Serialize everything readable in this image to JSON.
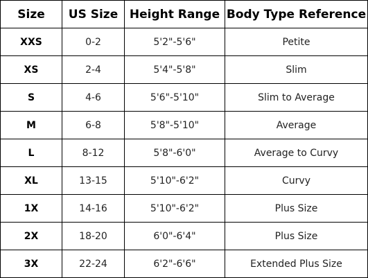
{
  "table": {
    "header": [
      "Size",
      "US Size",
      "Height Range",
      "Body Type Reference"
    ],
    "rows": [
      [
        "XXS",
        "0-2",
        "5'2\"-5'6\"",
        "Petite"
      ],
      [
        "XS",
        "2-4",
        "5'4\"-5'8\"",
        "Slim"
      ],
      [
        "S",
        "4-6",
        "5'6\"-5'10\"",
        "Slim to Average"
      ],
      [
        "M",
        "6-8",
        "5'8\"-5'10\"",
        "Average"
      ],
      [
        "L",
        "8-12",
        "5'8\"-6'0\"",
        "Average to Curvy"
      ],
      [
        "XL",
        "13-15",
        "5'10\"-6'2\"",
        "Curvy"
      ],
      [
        "1X",
        "14-16",
        "5'10\"-6'2\"",
        "Plus Size"
      ],
      [
        "2X",
        "18-20",
        "6'0\"-6'4\"",
        "Plus Size"
      ],
      [
        "3X",
        "22-24",
        "6'2\"-6'6\"",
        "Extended Plus Size"
      ]
    ]
  }
}
